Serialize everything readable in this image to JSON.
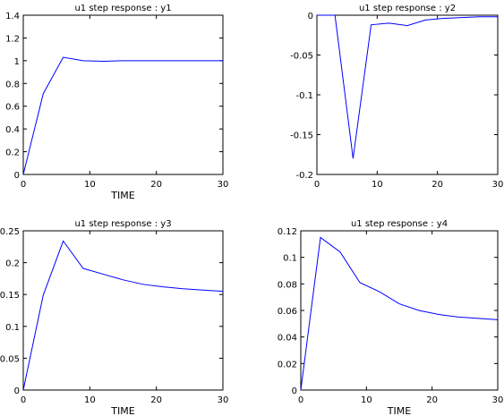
{
  "chart_data": [
    {
      "type": "line",
      "title": "u1 step response : y1",
      "xlabel": "TIME",
      "ylabel": "",
      "xlim": [
        0,
        30
      ],
      "ylim": [
        0,
        1.4
      ],
      "xticks": [
        0,
        10,
        20,
        30
      ],
      "xticklabels": [
        "0",
        "10",
        "20",
        "30"
      ],
      "yticks": [
        0,
        0.2,
        0.4,
        0.6,
        0.8,
        1,
        1.2,
        1.4
      ],
      "yticklabels": [
        "0",
        "0.2",
        "0.4",
        "0.6",
        "0.8",
        "1",
        "1.2",
        "1.4"
      ],
      "grid": false,
      "line_color": "#0000ff",
      "series": [
        {
          "x": [
            0,
            3,
            6,
            9,
            12,
            15,
            18,
            21,
            24,
            27,
            30
          ],
          "y": [
            0,
            0.71,
            1.03,
            1.0,
            0.995,
            1.0,
            1.0,
            1.0,
            1.0,
            1.0,
            1.0
          ]
        }
      ]
    },
    {
      "type": "line",
      "title": "u1 step response : y2",
      "xlabel": "",
      "ylabel": "",
      "xlim": [
        0,
        30
      ],
      "ylim": [
        -0.2,
        0
      ],
      "xticks": [
        0,
        10,
        20,
        30
      ],
      "xticklabels": [
        "0",
        "10",
        "20",
        "30"
      ],
      "yticks": [
        -0.2,
        -0.15,
        -0.1,
        -0.05,
        0
      ],
      "yticklabels": [
        "-0.2",
        "-0.15",
        "-0.1",
        "-0.05",
        "0"
      ],
      "grid": false,
      "line_color": "#0000ff",
      "series": [
        {
          "x": [
            0,
            3,
            6,
            9,
            12,
            15,
            18,
            21,
            24,
            27,
            30
          ],
          "y": [
            0,
            0,
            -0.18,
            -0.012,
            -0.01,
            -0.013,
            -0.006,
            -0.004,
            -0.003,
            -0.002,
            -0.002
          ]
        }
      ]
    },
    {
      "type": "line",
      "title": "u1 step response : y3",
      "xlabel": "TIME",
      "ylabel": "",
      "xlim": [
        0,
        30
      ],
      "ylim": [
        0,
        0.25
      ],
      "xticks": [
        0,
        10,
        20,
        30
      ],
      "xticklabels": [
        "0",
        "10",
        "20",
        "30"
      ],
      "yticks": [
        0,
        0.05,
        0.1,
        0.15,
        0.2,
        0.25
      ],
      "yticklabels": [
        "0",
        "0.05",
        "0.1",
        "0.15",
        "0.2",
        "0.25"
      ],
      "grid": false,
      "line_color": "#0000ff",
      "series": [
        {
          "x": [
            0,
            3,
            6,
            9,
            12,
            15,
            18,
            21,
            24,
            27,
            30
          ],
          "y": [
            0,
            0.149,
            0.234,
            0.191,
            0.182,
            0.173,
            0.166,
            0.162,
            0.159,
            0.157,
            0.155
          ]
        }
      ]
    },
    {
      "type": "line",
      "title": "u1 step response : y4",
      "xlabel": "TIME",
      "ylabel": "",
      "xlim": [
        0,
        30
      ],
      "ylim": [
        0,
        0.12
      ],
      "xticks": [
        0,
        10,
        20,
        30
      ],
      "xticklabels": [
        "0",
        "10",
        "20",
        "30"
      ],
      "yticks": [
        0,
        0.02,
        0.04,
        0.06,
        0.08,
        0.1,
        0.12
      ],
      "yticklabels": [
        "0",
        "0.02",
        "0.04",
        "0.06",
        "0.08",
        "0.1",
        "0.12"
      ],
      "grid": false,
      "line_color": "#0000ff",
      "series": [
        {
          "x": [
            0,
            3,
            6,
            9,
            12,
            15,
            18,
            21,
            24,
            27,
            30
          ],
          "y": [
            0,
            0.115,
            0.104,
            0.081,
            0.074,
            0.065,
            0.06,
            0.057,
            0.055,
            0.054,
            0.053
          ]
        }
      ]
    }
  ]
}
